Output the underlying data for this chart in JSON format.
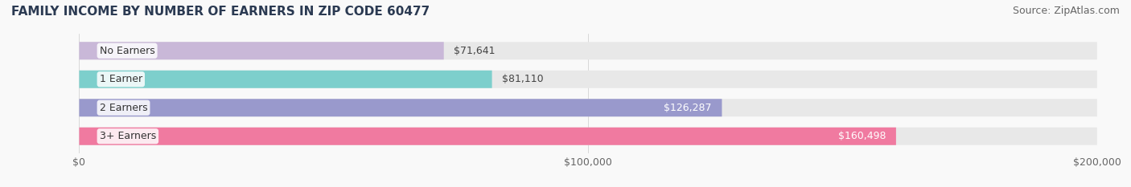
{
  "title": "FAMILY INCOME BY NUMBER OF EARNERS IN ZIP CODE 60477",
  "source": "Source: ZipAtlas.com",
  "categories": [
    "No Earners",
    "1 Earner",
    "2 Earners",
    "3+ Earners"
  ],
  "values": [
    71641,
    81110,
    126287,
    160498
  ],
  "bar_colors": [
    "#c9b8d8",
    "#7dcfcc",
    "#9999cc",
    "#f07aa0"
  ],
  "bar_bg_color": "#eeeeee",
  "label_colors": [
    "#555555",
    "#555555",
    "#ffffff",
    "#ffffff"
  ],
  "xlim": [
    0,
    200000
  ],
  "xticks": [
    0,
    100000,
    200000
  ],
  "xtick_labels": [
    "$0",
    "$100,000",
    "$200,000"
  ],
  "title_fontsize": 11,
  "source_fontsize": 9,
  "label_fontsize": 9,
  "tick_fontsize": 9,
  "bar_height": 0.62,
  "background_color": "#f9f9f9",
  "bar_bg_alpha": 0.5
}
